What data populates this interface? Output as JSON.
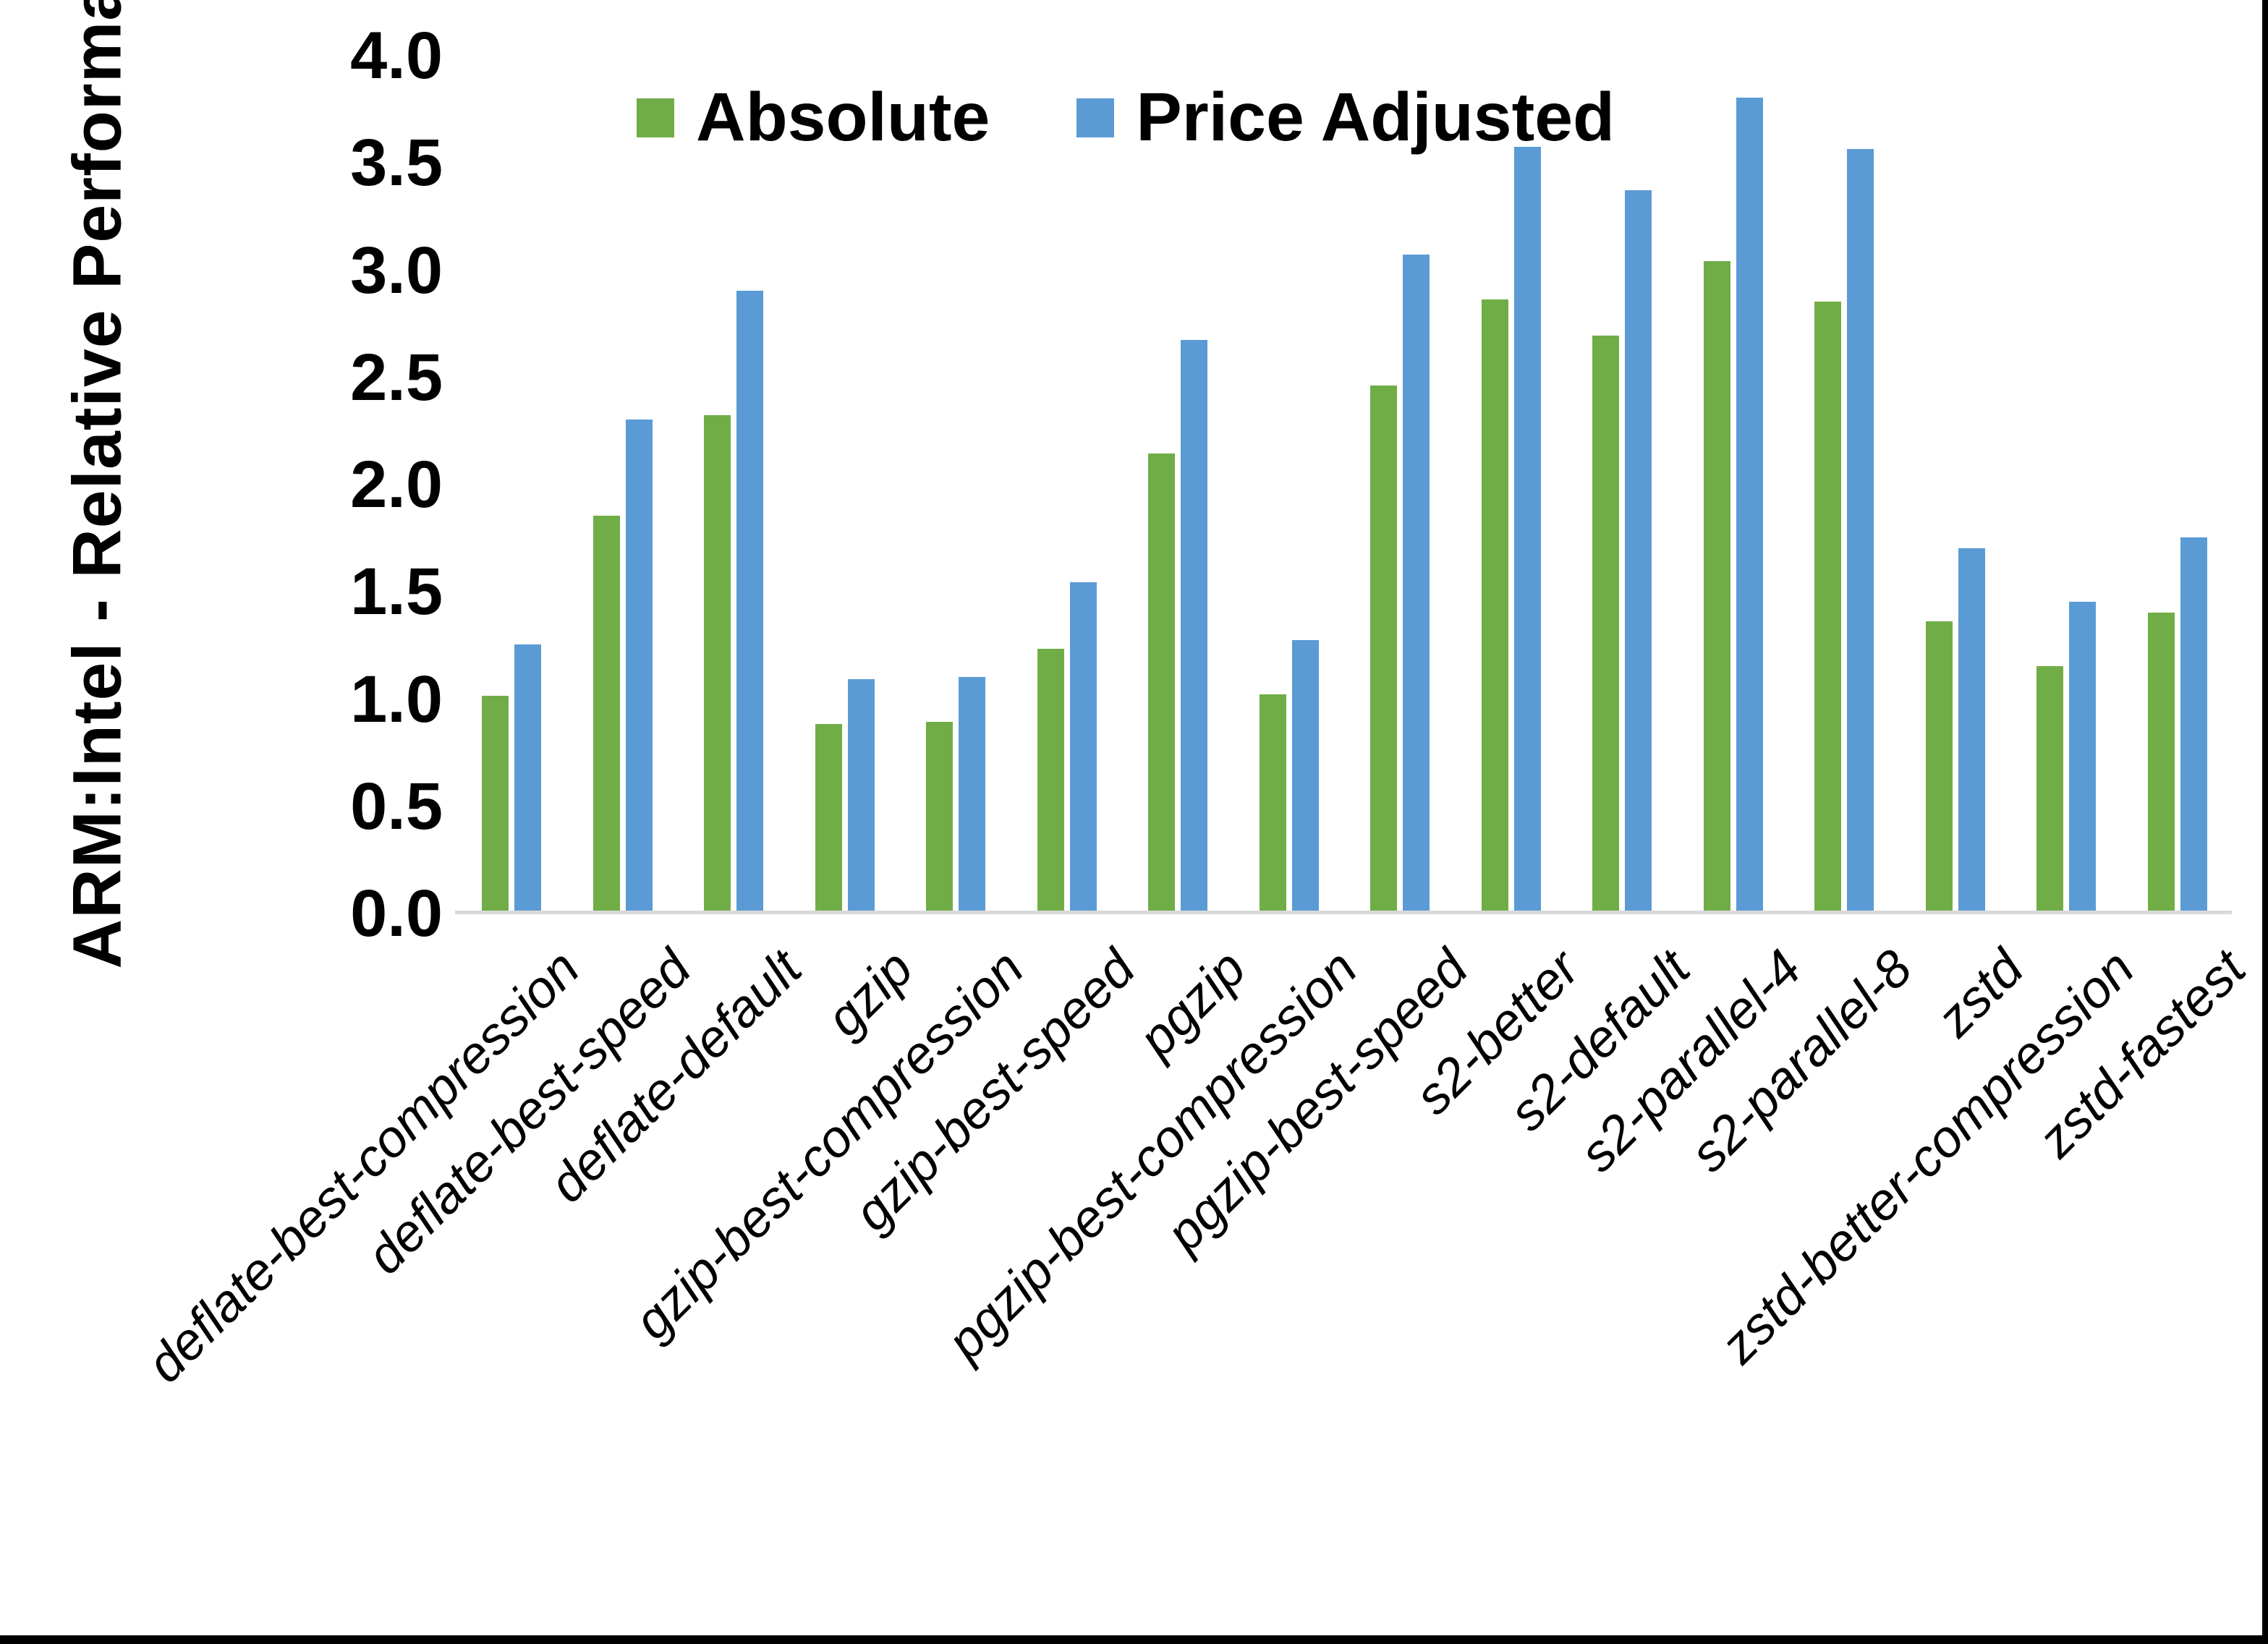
{
  "chart_data": {
    "type": "bar",
    "title": "",
    "xlabel": "",
    "ylabel": "ARM:Intel - Relative Performance",
    "ylim": [
      0.0,
      4.0
    ],
    "ytick_step": 0.5,
    "ytick_labels": [
      "4.0",
      "3.5",
      "3.0",
      "2.5",
      "2.0",
      "1.5",
      "1.0",
      "0.5",
      "0.0"
    ],
    "grid": false,
    "legend_position": "top-center",
    "categories": [
      "deflate-best-compression",
      "deflate-best-speed",
      "deflate-default",
      "gzip",
      "gzip-best-compression",
      "gzip-best-speed",
      "pgzip",
      "pgzip-best-compression",
      "pgzip-best-speed",
      "s2-better",
      "s2-default",
      "s2-parallel-4",
      "s2-parallel-8",
      "zstd",
      "zstd-better-compression",
      "zstd-fastest"
    ],
    "series": [
      {
        "name": "Absolute",
        "color": "#70AD47",
        "values": [
          1.0,
          1.84,
          2.31,
          0.87,
          0.88,
          1.22,
          2.13,
          1.01,
          2.45,
          2.85,
          2.68,
          3.03,
          2.84,
          1.35,
          1.14,
          1.39
        ]
      },
      {
        "name": "Price Adjusted",
        "color": "#5B9BD5",
        "values": [
          1.24,
          2.29,
          2.89,
          1.08,
          1.09,
          1.53,
          2.66,
          1.26,
          3.06,
          3.56,
          3.36,
          3.79,
          3.55,
          1.69,
          1.44,
          1.74
        ]
      }
    ]
  },
  "colors": {
    "background": "#FFFFFF",
    "axis_line": "#D9D9D9",
    "text": "#000000",
    "border": "#000000"
  }
}
